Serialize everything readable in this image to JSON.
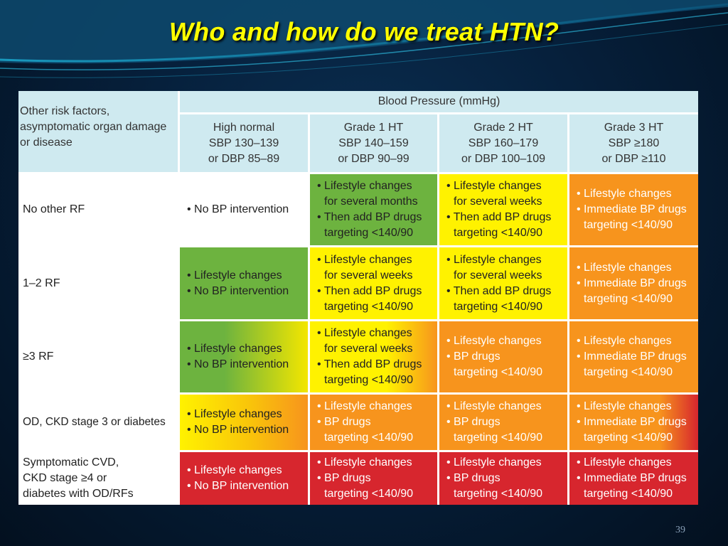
{
  "slide": {
    "title": "Who and how do we treat HTN?",
    "page_number": "39"
  },
  "table": {
    "bp_header": "Blood Pressure (mmHg)",
    "risk_header": [
      "Other risk factors,",
      "asymptomatic organ damage",
      "or disease"
    ],
    "columns": [
      {
        "l1": "High normal",
        "l2": "SBP 130–139",
        "l3": "or DBP 85–89"
      },
      {
        "l1": "Grade 1 HT",
        "l2": "SBP 140–159",
        "l3": "or DBP 90–99"
      },
      {
        "l1": "Grade 2 HT",
        "l2": "SBP 160–179",
        "l3": "or DBP 100–109"
      },
      {
        "l1": "Grade 3 HT",
        "l2": "SBP ≥180",
        "l3": "or DBP ≥110"
      }
    ],
    "rows": [
      {
        "label": [
          "No other RF"
        ],
        "cells": [
          {
            "color": "#ffffff",
            "lines": [
              "• No BP intervention"
            ]
          },
          {
            "color": "#6db33f",
            "lines": [
              "• Lifestyle changes",
              "for several months",
              "• Then add BP drugs",
              "targeting <140/90"
            ]
          },
          {
            "color": "#fff200",
            "lines": [
              "• Lifestyle changes",
              "for several weeks",
              "• Then add BP drugs",
              "targeting <140/90"
            ]
          },
          {
            "color": "#f7941d",
            "lines": [
              "• Lifestyle changes",
              "• Immediate BP drugs",
              "targeting <140/90"
            ]
          }
        ]
      },
      {
        "label": [
          "1–2 RF"
        ],
        "cells": [
          {
            "color": "#6db33f",
            "lines": [
              "• Lifestyle changes",
              "• No BP intervention"
            ]
          },
          {
            "color": "#fff200",
            "lines": [
              "• Lifestyle changes",
              "for several weeks",
              "• Then add BP drugs",
              "targeting <140/90"
            ]
          },
          {
            "color": "#fff200",
            "lines": [
              "• Lifestyle changes",
              "for several weeks",
              "• Then add BP drugs",
              "targeting <140/90"
            ]
          },
          {
            "color": "#f7941d",
            "lines": [
              "• Lifestyle changes",
              "• Immediate BP drugs",
              "targeting <140/90"
            ]
          }
        ]
      },
      {
        "label": [
          "≥3 RF"
        ],
        "cells": [
          {
            "color": "#6db33f",
            "lines": [
              "• Lifestyle changes",
              "• No BP intervention"
            ]
          },
          {
            "color": "#fff200",
            "lines": [
              "• Lifestyle changes",
              "for several weeks",
              "• Then add BP drugs",
              "targeting <140/90"
            ]
          },
          {
            "color": "#f7941d",
            "lines": [
              "• Lifestyle changes",
              "• BP drugs",
              "targeting <140/90"
            ]
          },
          {
            "color": "#f7941d",
            "lines": [
              "• Lifestyle changes",
              "• Immediate BP drugs",
              "targeting <140/90"
            ]
          }
        ]
      },
      {
        "label": [
          "OD, CKD stage 3 or diabetes"
        ],
        "cells": [
          {
            "color": "#fff200",
            "lines": [
              "• Lifestyle changes",
              "• No BP intervention"
            ]
          },
          {
            "color": "#f7941d",
            "lines": [
              "• Lifestyle changes",
              "• BP drugs",
              "targeting <140/90"
            ]
          },
          {
            "color": "#f7941d",
            "lines": [
              "• Lifestyle changes",
              "• BP drugs",
              "targeting <140/90"
            ]
          },
          {
            "color": "#f7941d",
            "lines": [
              "• Lifestyle changes",
              "• Immediate BP drugs",
              "targeting <140/90"
            ]
          }
        ]
      },
      {
        "label": [
          "Symptomatic CVD,",
          "CKD stage ≥4 or",
          "diabetes with OD/RFs"
        ],
        "cells": [
          {
            "color": "#d7262e",
            "lines": [
              "• Lifestyle changes",
              "• No BP intervention"
            ]
          },
          {
            "color": "#d7262e",
            "lines": [
              "• Lifestyle changes",
              "• BP drugs",
              "targeting <140/90"
            ]
          },
          {
            "color": "#d7262e",
            "lines": [
              "• Lifestyle changes",
              "• BP drugs",
              "targeting <140/90"
            ]
          },
          {
            "color": "#d7262e",
            "lines": [
              "• Lifestyle changes",
              "• Immediate BP drugs",
              "targeting <140/90"
            ]
          }
        ]
      }
    ]
  }
}
